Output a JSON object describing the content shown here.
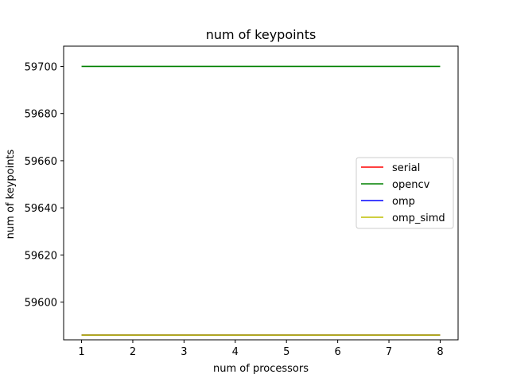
{
  "chart_data": {
    "type": "line",
    "title": "num of keypoints",
    "xlabel": "num of processors",
    "ylabel": "num of keypoints",
    "x": [
      1,
      2,
      3,
      4,
      5,
      6,
      7,
      8
    ],
    "xlim": [
      0.65,
      8.35
    ],
    "ylim": [
      59584,
      59708.6
    ],
    "xticks": [
      1,
      2,
      3,
      4,
      5,
      6,
      7,
      8
    ],
    "yticks": [
      59600,
      59620,
      59640,
      59660,
      59680,
      59700
    ],
    "grid": false,
    "legend_position": "center-right",
    "series": [
      {
        "name": "serial",
        "color": "#ff0000",
        "values": [
          59586,
          59586,
          59586,
          59586,
          59586,
          59586,
          59586,
          59586
        ]
      },
      {
        "name": "opencv",
        "color": "#008000",
        "values": [
          59700,
          59700,
          59700,
          59700,
          59700,
          59700,
          59700,
          59700
        ]
      },
      {
        "name": "omp",
        "color": "#0000ff",
        "values": [
          59586,
          59586,
          59586,
          59586,
          59586,
          59586,
          59586,
          59586
        ]
      },
      {
        "name": "omp_simd",
        "color": "#bfbf00",
        "values": [
          59586,
          59586,
          59586,
          59586,
          59586,
          59586,
          59586,
          59586
        ]
      }
    ]
  }
}
